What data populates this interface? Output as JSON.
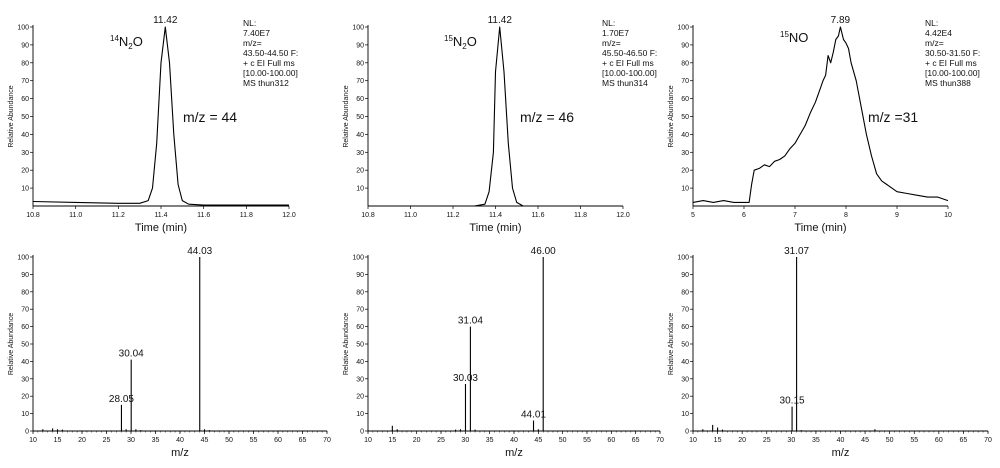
{
  "chart_data": [
    {
      "id": "c1",
      "type": "line",
      "xlabel": "Time (min)",
      "ylabel": "Relative Abundance",
      "xlim": [
        10.8,
        12.0
      ],
      "ylim": [
        0,
        100
      ],
      "xticks": [
        "10.8",
        "11.0",
        "11.2",
        "11.4",
        "11.6",
        "11.8",
        "12.0"
      ],
      "yticks": [
        "10",
        "20",
        "30",
        "40",
        "50",
        "60",
        "70",
        "80",
        "90",
        "100"
      ],
      "x": [
        10.8,
        11.0,
        11.2,
        11.3,
        11.34,
        11.36,
        11.38,
        11.4,
        11.42,
        11.44,
        11.46,
        11.48,
        11.5,
        11.53,
        11.6,
        12.0
      ],
      "y": [
        2.5,
        2,
        1.5,
        1.5,
        3,
        10,
        35,
        80,
        100,
        80,
        40,
        12,
        3,
        1,
        0.5,
        0.5
      ],
      "peak_label": {
        "x": 11.42,
        "y": 100,
        "text": "11.42"
      },
      "species": {
        "isotope": "14",
        "body": "N",
        "sub": "2",
        "tail": "O"
      },
      "mz_label": "m/z = 44",
      "info": [
        "NL:",
        "7.40E7",
        "m/z=",
        "43.50-44.50 F:",
        "+ c EI Full ms",
        "[10.00-100.00]",
        "MS thun312"
      ]
    },
    {
      "id": "c2",
      "type": "line",
      "xlabel": "Time (min)",
      "ylabel": "Relative Abundance",
      "xlim": [
        10.8,
        12.0
      ],
      "ylim": [
        0,
        100
      ],
      "xticks": [
        "10.8",
        "11.0",
        "11.2",
        "11.4",
        "11.6",
        "11.8",
        "12.0"
      ],
      "yticks": [
        "10",
        "20",
        "30",
        "40",
        "50",
        "60",
        "70",
        "80",
        "90",
        "100"
      ],
      "x": [
        10.8,
        11.3,
        11.35,
        11.37,
        11.39,
        11.4,
        11.42,
        11.44,
        11.46,
        11.48,
        11.5,
        11.53,
        12.0
      ],
      "y": [
        0,
        0,
        1,
        8,
        30,
        75,
        100,
        75,
        35,
        10,
        2,
        0,
        0
      ],
      "peak_label": {
        "x": 11.42,
        "y": 100,
        "text": "11.42"
      },
      "species": {
        "isotope": "15",
        "body": "N",
        "sub": "2",
        "tail": "O"
      },
      "mz_label": "m/z = 46",
      "info": [
        "NL:",
        "1.70E7",
        "m/z=",
        "45.50-46.50 F:",
        "+ c EI Full ms",
        "[10.00-100.00]",
        "MS thun314"
      ]
    },
    {
      "id": "c3",
      "type": "line",
      "xlabel": "Time (min)",
      "ylabel": "Relative Abundance",
      "xlim": [
        5,
        10
      ],
      "ylim": [
        0,
        100
      ],
      "xticks": [
        "5",
        "6",
        "7",
        "8",
        "9",
        "10"
      ],
      "yticks": [
        "10",
        "20",
        "30",
        "40",
        "50",
        "60",
        "70",
        "80",
        "90",
        "100"
      ],
      "x": [
        5.0,
        5.2,
        5.4,
        5.6,
        5.8,
        6.0,
        6.1,
        6.15,
        6.2,
        6.3,
        6.4,
        6.5,
        6.6,
        6.7,
        6.8,
        6.9,
        7.0,
        7.1,
        7.2,
        7.3,
        7.4,
        7.5,
        7.55,
        7.6,
        7.65,
        7.7,
        7.75,
        7.8,
        7.85,
        7.89,
        7.95,
        8.0,
        8.05,
        8.1,
        8.2,
        8.3,
        8.4,
        8.5,
        8.6,
        8.7,
        8.8,
        8.9,
        9.0,
        9.2,
        9.4,
        9.6,
        9.8,
        10.0
      ],
      "y": [
        2,
        3,
        2,
        3,
        2,
        2,
        2,
        12,
        20,
        21,
        23,
        22,
        25,
        26,
        28,
        32,
        35,
        40,
        45,
        52,
        58,
        66,
        70,
        73,
        84,
        80,
        86,
        93,
        95,
        100,
        93,
        91,
        88,
        80,
        70,
        55,
        40,
        28,
        18,
        14,
        12,
        10,
        8,
        7,
        6,
        5,
        5,
        3
      ],
      "peak_label": {
        "x": 7.89,
        "y": 100,
        "text": "7.89"
      },
      "species": {
        "isotope": "15",
        "body": "NO",
        "sub": "",
        "tail": ""
      },
      "mz_label": "m/z =31",
      "info": [
        "NL:",
        "4.42E4",
        "m/z=",
        "30.50-31.50 F:",
        "+ c EI Full ms",
        "[10.00-100.00]",
        "MS thun388"
      ]
    },
    {
      "id": "s1",
      "type": "bar",
      "xlabel": "m/z",
      "ylabel": "Relative Abundance",
      "xlim": [
        10,
        70
      ],
      "ylim": [
        0,
        100
      ],
      "xticks": [
        "10",
        "15",
        "20",
        "25",
        "30",
        "35",
        "40",
        "45",
        "50",
        "55",
        "60",
        "65",
        "70"
      ],
      "yticks": [
        "0",
        "10",
        "20",
        "30",
        "40",
        "50",
        "60",
        "70",
        "80",
        "90",
        "100"
      ],
      "x": [
        12,
        14,
        15,
        16,
        28.05,
        29,
        30.04,
        31,
        32,
        44.03,
        45,
        46
      ],
      "y": [
        1,
        1.5,
        1,
        0.8,
        15,
        1,
        41,
        1,
        0.5,
        100,
        1,
        0.5
      ],
      "labels": [
        {
          "x": 28.05,
          "y": 15,
          "text": "28.05"
        },
        {
          "x": 30.04,
          "y": 41,
          "text": "30.04"
        },
        {
          "x": 44.03,
          "y": 100,
          "text": "44.03"
        }
      ]
    },
    {
      "id": "s2",
      "type": "bar",
      "xlabel": "m/z",
      "ylabel": "Relative Abundance",
      "xlim": [
        10,
        70
      ],
      "ylim": [
        0,
        100
      ],
      "xticks": [
        "10",
        "15",
        "20",
        "25",
        "30",
        "35",
        "40",
        "45",
        "50",
        "55",
        "60",
        "65",
        "70"
      ],
      "yticks": [
        "0",
        "10",
        "20",
        "30",
        "40",
        "50",
        "60",
        "70",
        "80",
        "90",
        "100"
      ],
      "x": [
        15,
        16,
        28,
        29,
        30.03,
        31.04,
        32,
        44.01,
        45,
        46.0
      ],
      "y": [
        3,
        1,
        0.8,
        1,
        27,
        60,
        0.8,
        6,
        1,
        100
      ],
      "labels": [
        {
          "x": 30.03,
          "y": 27,
          "text": "30.03"
        },
        {
          "x": 31.04,
          "y": 60,
          "text": "31.04"
        },
        {
          "x": 44.01,
          "y": 6,
          "text": "44.01"
        },
        {
          "x": 46.0,
          "y": 100,
          "text": "46.00"
        }
      ]
    },
    {
      "id": "s3",
      "type": "bar",
      "xlabel": "m/z",
      "ylabel": "Relative Abundance",
      "xlim": [
        10,
        70
      ],
      "ylim": [
        0,
        100
      ],
      "xticks": [
        "10",
        "15",
        "20",
        "25",
        "30",
        "35",
        "40",
        "45",
        "50",
        "55",
        "60",
        "65",
        "70"
      ],
      "yticks": [
        "0",
        "10",
        "20",
        "30",
        "40",
        "50",
        "60",
        "70",
        "80",
        "90",
        "100"
      ],
      "x": [
        12,
        14,
        15,
        16,
        30.15,
        31.07,
        32,
        47
      ],
      "y": [
        1,
        3.5,
        2,
        0.8,
        14,
        100,
        0.5,
        1
      ],
      "labels": [
        {
          "x": 30.15,
          "y": 14,
          "text": "30.15"
        },
        {
          "x": 31.07,
          "y": 100,
          "text": "31.07"
        }
      ]
    }
  ]
}
